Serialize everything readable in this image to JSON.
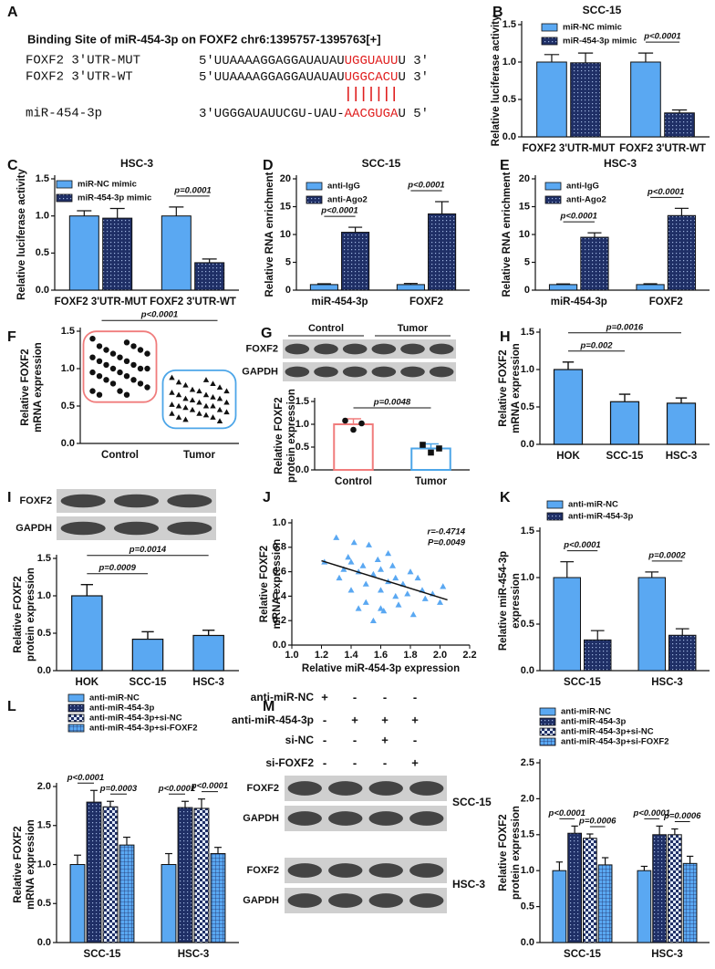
{
  "panel_a": {
    "label": "A",
    "title": "Binding Site of miR-454-3p on FOXF2 chr6:1395757-1395763[+]",
    "rows": [
      {
        "name": "FOXF2 3'UTR-MUT",
        "seq": [
          "5'UUAAAAGGAGGAUAUAU",
          "UGGUAUU",
          "U 3'"
        ]
      },
      {
        "name": "FOXF2 3'UTR-WT",
        "seq": [
          "5'UUAAAAGGAGGAUAUAU",
          "UGGCACU",
          "U 3'"
        ]
      },
      {
        "name": "miR-454-3p",
        "seq": [
          "3'UGGGAUAUUCGU-UAU-",
          "AACGUGA",
          "U 5'"
        ]
      }
    ]
  },
  "panel_m": {
    "label": "M",
    "conditions": [
      "anti-miR-NC",
      "anti-miR-454-3p",
      "si-NC",
      "si-FOXF2"
    ],
    "marks": [
      [
        "+",
        "-",
        "-",
        "-"
      ],
      [
        "-",
        "+",
        "+",
        "+"
      ],
      [
        "-",
        "-",
        "+",
        "-"
      ],
      [
        "-",
        "-",
        "-",
        "+"
      ]
    ],
    "blot_rows": [
      "FOXF2",
      "GAPDH"
    ],
    "cell_lines": [
      "SCC-15",
      "HSC-3"
    ]
  },
  "chart_data": [
    {
      "label": "B",
      "type": "bar",
      "title": "SCC-15",
      "ylabel": [
        "Relative luciferase activity"
      ],
      "categories": [
        "FOXF2 3'UTR-MUT",
        "FOXF2 3'UTR-WT"
      ],
      "series": [
        {
          "name": "miR-NC mimic",
          "color": "#5aa8f2",
          "pattern": "solid",
          "values": [
            1.0,
            1.0
          ],
          "errors": [
            0.1,
            0.12
          ]
        },
        {
          "name": "miR-454-3p mimic",
          "color": "#1f2f66",
          "pattern": "crosshatch",
          "values": [
            0.99,
            0.32
          ],
          "errors": [
            0.13,
            0.04
          ]
        }
      ],
      "ylim": [
        0,
        1.5
      ],
      "yticks": [
        {
          "value": 0,
          "label": "0.0"
        },
        0.5,
        {
          "value": 1,
          "label": "1.0"
        },
        1.5
      ],
      "annotations": [
        "p<0.0001"
      ]
    },
    {
      "label": "C",
      "type": "bar",
      "title": "HSC-3",
      "ylabel": [
        "Relative luciferase activity"
      ],
      "categories": [
        "FOXF2 3'UTR-MUT",
        "FOXF2 3'UTR-WT"
      ],
      "series": [
        {
          "name": "miR-NC mimic",
          "color": "#5aa8f2",
          "pattern": "solid",
          "values": [
            1.0,
            1.0
          ],
          "errors": [
            0.07,
            0.12
          ]
        },
        {
          "name": "miR-454-3p mimic",
          "color": "#1f2f66",
          "pattern": "crosshatch",
          "values": [
            0.97,
            0.37
          ],
          "errors": [
            0.13,
            0.05
          ]
        }
      ],
      "ylim": [
        0,
        1.5
      ],
      "yticks": [
        {
          "value": 0,
          "label": "0.0"
        },
        0.5,
        {
          "value": 1,
          "label": "1.0"
        },
        1.5
      ],
      "annotations": [
        "p=0.0001"
      ]
    },
    {
      "label": "D",
      "type": "bar",
      "title": "SCC-15",
      "ylabel": [
        "Relative RNA enrichment"
      ],
      "categories": [
        "miR-454-3p",
        "FOXF2"
      ],
      "series": [
        {
          "name": "anti-IgG",
          "color": "#5aa8f2",
          "pattern": "solid",
          "values": [
            1.0,
            1.0
          ],
          "errors": [
            0.15,
            0.2
          ]
        },
        {
          "name": "anti-Ago2",
          "color": "#1f2f66",
          "pattern": "crosshatch",
          "values": [
            10.4,
            13.7
          ],
          "errors": [
            0.9,
            2.2
          ]
        }
      ],
      "ylim": [
        0,
        20
      ],
      "yticks": [
        0,
        5,
        10,
        15,
        20
      ],
      "annotations": [
        "p<0.0001",
        "p<0.0001"
      ]
    },
    {
      "label": "E",
      "type": "bar",
      "title": "HSC-3",
      "ylabel": [
        "Relative RNA enrichment"
      ],
      "categories": [
        "miR-454-3p",
        "FOXF2"
      ],
      "series": [
        {
          "name": "anti-IgG",
          "color": "#5aa8f2",
          "pattern": "solid",
          "values": [
            1.0,
            1.0
          ],
          "errors": [
            0.12,
            0.15
          ]
        },
        {
          "name": "anti-Ago2",
          "color": "#1f2f66",
          "pattern": "crosshatch",
          "values": [
            9.5,
            13.4
          ],
          "errors": [
            0.8,
            1.3
          ]
        }
      ],
      "ylim": [
        0,
        20
      ],
      "yticks": [
        0,
        5,
        10,
        15,
        20
      ],
      "annotations": [
        "p<0.0001",
        "p<0.0001"
      ]
    },
    {
      "label": "F",
      "type": "dot",
      "ylabel": [
        "Relative FOXF2",
        "mRNA expression"
      ],
      "categories": [
        "Control",
        "Tumor"
      ],
      "colors": [
        "#f07c7c",
        "#4da6e8"
      ],
      "markers": [
        "circle",
        "triangle"
      ],
      "points": [
        [
          1.4,
          1.35,
          1.3,
          1.3,
          1.25,
          1.25,
          1.2,
          1.2,
          1.15,
          1.15,
          1.1,
          1.1,
          1.05,
          1.05,
          1.0,
          1.0,
          1.0,
          0.95,
          0.95,
          0.9,
          0.9,
          0.85,
          0.85,
          0.8,
          0.8,
          0.75,
          0.7,
          0.7,
          0.65,
          0.65
        ],
        [
          0.88,
          0.85,
          0.82,
          0.8,
          0.78,
          0.75,
          0.72,
          0.7,
          0.7,
          0.68,
          0.65,
          0.65,
          0.62,
          0.6,
          0.6,
          0.58,
          0.55,
          0.55,
          0.52,
          0.5,
          0.5,
          0.5,
          0.48,
          0.45,
          0.45,
          0.42,
          0.4,
          0.4,
          0.38,
          0.35,
          0.35,
          0.32,
          0.3
        ]
      ],
      "ylim": [
        0,
        1.5
      ],
      "yticks": [
        {
          "value": 0,
          "label": "0.0"
        },
        0.5,
        {
          "value": 1,
          "label": "1.0"
        },
        1.5
      ],
      "annotations": [
        "p<0.0001"
      ]
    },
    {
      "label": "G",
      "type": "bar",
      "ylabel": [
        "Relative FOXF2",
        "protein expression"
      ],
      "blot": {
        "lanes": [
          "Control",
          "Tumor"
        ],
        "rows": [
          "FOXF2",
          "GAPDH"
        ]
      },
      "categories": [
        "Control",
        "Tumor"
      ],
      "values": [
        1.0,
        0.47
      ],
      "errors": [
        0.12,
        0.1
      ],
      "fill": "none",
      "colors": [
        "#f07c7c",
        "#4da6e8"
      ],
      "markers": [
        "circle",
        "square"
      ],
      "points": [
        [
          1.08,
          0.88,
          1.02
        ],
        [
          0.55,
          0.38,
          0.47
        ]
      ],
      "ylim": [
        0,
        1.5
      ],
      "yticks": [
        {
          "value": 0,
          "label": "0.0"
        },
        0.5,
        {
          "value": 1,
          "label": "1.0"
        },
        1.5
      ],
      "annotations": [
        "p=0.0048"
      ]
    },
    {
      "label": "H",
      "type": "bar",
      "ylabel": [
        "Relative FOXF2",
        "mRNA expression"
      ],
      "categories": [
        "HOK",
        "SCC-15",
        "HSC-3"
      ],
      "values": [
        1.0,
        0.57,
        0.55
      ],
      "errors": [
        0.1,
        0.1,
        0.07
      ],
      "color": "#5aa8f2",
      "ylim": [
        0,
        1.5
      ],
      "yticks": [
        {
          "value": 0,
          "label": "0.0"
        },
        0.5,
        {
          "value": 1,
          "label": "1.0"
        },
        1.5
      ],
      "annotations": [
        "p=0.002",
        "p=0.0016"
      ]
    },
    {
      "label": "I",
      "type": "bar",
      "ylabel": [
        "Relative FOXF2",
        "protein expression"
      ],
      "blot": {
        "rows": [
          "FOXF2",
          "GAPDH"
        ]
      },
      "categories": [
        "HOK",
        "SCC-15",
        "HSC-3"
      ],
      "values": [
        1.0,
        0.42,
        0.47
      ],
      "errors": [
        0.15,
        0.1,
        0.07
      ],
      "color": "#5aa8f2",
      "ylim": [
        0,
        1.5
      ],
      "yticks": [
        {
          "value": 0,
          "label": "0.0"
        },
        0.5,
        {
          "value": 1,
          "label": "1.0"
        },
        1.5
      ],
      "annotations": [
        "p=0.0009",
        "p=0.0014"
      ]
    },
    {
      "label": "J",
      "type": "scatter",
      "ylabel": [
        "Relative FOXF2",
        "mRNA expression"
      ],
      "xlabel": "Relative miR-454-3p expression",
      "color": "#5aa8f2",
      "x": [
        1.22,
        1.3,
        1.32,
        1.35,
        1.38,
        1.4,
        1.42,
        1.45,
        1.45,
        1.48,
        1.5,
        1.52,
        1.55,
        1.55,
        1.58,
        1.6,
        1.6,
        1.62,
        1.65,
        1.65,
        1.68,
        1.7,
        1.72,
        1.75,
        1.78,
        1.8,
        1.82,
        1.85,
        1.88,
        1.9,
        1.95,
        2.0,
        2.02,
        1.4,
        1.5,
        1.7,
        1.6
      ],
      "y": [
        0.68,
        0.88,
        0.55,
        0.62,
        0.72,
        0.45,
        0.84,
        0.6,
        0.3,
        0.65,
        0.5,
        0.82,
        0.58,
        0.2,
        0.7,
        0.45,
        0.62,
        0.28,
        0.52,
        0.75,
        0.65,
        0.4,
        0.33,
        0.5,
        0.42,
        0.6,
        0.25,
        0.55,
        0.45,
        0.38,
        0.42,
        0.35,
        0.48,
        0.68,
        0.35,
        0.55,
        0.3
      ],
      "fit": {
        "x": [
          1.2,
          2.05
        ],
        "y": [
          0.69,
          0.37
        ]
      },
      "xlim": [
        1.0,
        2.2
      ],
      "xticks": [
        {
          "value": 1,
          "label": "1.0"
        },
        1.2,
        1.4,
        1.6,
        1.8,
        {
          "value": 2,
          "label": "2.0"
        },
        2.2
      ],
      "ylim": [
        0,
        1.0
      ],
      "yticks": [
        {
          "value": 0,
          "label": "0.0"
        },
        0.2,
        0.4,
        0.6,
        0.8,
        {
          "value": 1,
          "label": "1.0"
        }
      ],
      "annotations": [
        "r=-0.4714",
        "P=0.0049"
      ]
    },
    {
      "label": "K",
      "type": "bar",
      "ylabel": [
        "Relative miR-454-3p",
        "expression"
      ],
      "categories": [
        "SCC-15",
        "HSC-3"
      ],
      "series": [
        {
          "name": "anti-miR-NC",
          "color": "#5aa8f2",
          "pattern": "solid",
          "values": [
            1.0,
            1.0
          ],
          "errors": [
            0.17,
            0.06
          ]
        },
        {
          "name": "anti-miR-454-3p",
          "color": "#1f2f66",
          "pattern": "crosshatch",
          "values": [
            0.33,
            0.38
          ],
          "errors": [
            0.1,
            0.07
          ]
        }
      ],
      "ylim": [
        0,
        1.5
      ],
      "yticks": [
        {
          "value": 0,
          "label": "0.0"
        },
        0.5,
        {
          "value": 1,
          "label": "1.0"
        },
        1.5
      ],
      "annotations": [
        "p<0.0001",
        "p=0.0002"
      ]
    },
    {
      "label": "L",
      "type": "bar",
      "ylabel": [
        "Relative FOXF2",
        "mRNA expression"
      ],
      "categories": [
        "SCC-15",
        "HSC-3"
      ],
      "series": [
        {
          "name": "anti-miR-NC",
          "color": "#5aa8f2",
          "pattern": "solid",
          "values": [
            1.0,
            1.0
          ],
          "errors": [
            0.12,
            0.14
          ]
        },
        {
          "name": "anti-miR-454-3p",
          "color": "#1f2f66",
          "pattern": "crosshatch",
          "values": [
            1.8,
            1.73
          ],
          "errors": [
            0.15,
            0.08
          ]
        },
        {
          "name": "anti-miR-454-3p+si-NC",
          "color": "#1f2f66",
          "pattern": "checker",
          "values": [
            1.74,
            1.72
          ],
          "errors": [
            0.07,
            0.12
          ]
        },
        {
          "name": "anti-miR-454-3p+si-FOXF2",
          "color": "#5aa8f2",
          "pattern": "grid",
          "values": [
            1.25,
            1.14
          ],
          "errors": [
            0.1,
            0.08
          ]
        }
      ],
      "ylim": [
        0,
        2
      ],
      "yticks": [
        {
          "value": 0,
          "label": "0.0"
        },
        0.5,
        {
          "value": 1,
          "label": "1.0"
        },
        1.5,
        {
          "value": 2,
          "label": "2.0"
        }
      ],
      "annotations": [
        "p<0.0001",
        "p=0.0003",
        "p<0.0001",
        "p<0.0001"
      ]
    },
    {
      "type": "bar",
      "ylabel": [
        "Relative FOXF2",
        "protein expression"
      ],
      "categories": [
        "SCC-15",
        "HSC-3"
      ],
      "series": [
        {
          "name": "anti-miR-NC",
          "color": "#5aa8f2",
          "pattern": "solid",
          "values": [
            1.0,
            1.0
          ],
          "errors": [
            0.12,
            0.06
          ]
        },
        {
          "name": "anti-miR-454-3p",
          "color": "#1f2f66",
          "pattern": "crosshatch",
          "values": [
            1.52,
            1.5
          ],
          "errors": [
            0.1,
            0.12
          ]
        },
        {
          "name": "anti-miR-454-3p+si-NC",
          "color": "#1f2f66",
          "pattern": "checker",
          "values": [
            1.45,
            1.5
          ],
          "errors": [
            0.06,
            0.08
          ]
        },
        {
          "name": "anti-miR-454-3p+si-FOXF2",
          "color": "#5aa8f2",
          "pattern": "grid",
          "values": [
            1.08,
            1.1
          ],
          "errors": [
            0.1,
            0.1
          ]
        }
      ],
      "ylim": [
        0,
        2.5
      ],
      "yticks": [
        {
          "value": 0,
          "label": "0.0"
        },
        0.5,
        {
          "value": 1,
          "label": "1.0"
        },
        1.5,
        {
          "value": 2,
          "label": "2.0"
        },
        2.5
      ],
      "annotations": [
        "p<0.0001",
        "p=0.0006",
        "p<0.0001",
        "p=0.0006"
      ]
    }
  ]
}
